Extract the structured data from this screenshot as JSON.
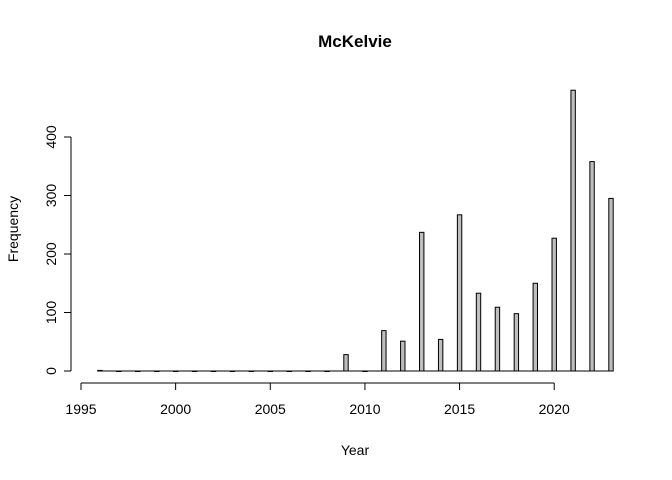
{
  "chart_data": {
    "type": "bar",
    "title": "McKelvie",
    "xlabel": "Year",
    "ylabel": "Frequency",
    "xlim": [
      1995,
      2023
    ],
    "ylim": [
      0,
      480
    ],
    "x_ticks": [
      1995,
      2000,
      2005,
      2010,
      2015,
      2020
    ],
    "y_ticks": [
      0,
      100,
      200,
      300,
      400
    ],
    "grid": false,
    "legend": "none",
    "bar_color": "#bebebe",
    "border_color": "#000000",
    "x": [
      1996,
      2009,
      2011,
      2012,
      2013,
      2014,
      2015,
      2016,
      2017,
      2018,
      2019,
      2020,
      2021,
      2022,
      2023
    ],
    "values": [
      1,
      28,
      69,
      51,
      237,
      54,
      267,
      133,
      109,
      98,
      150,
      227,
      480,
      358,
      295
    ]
  }
}
